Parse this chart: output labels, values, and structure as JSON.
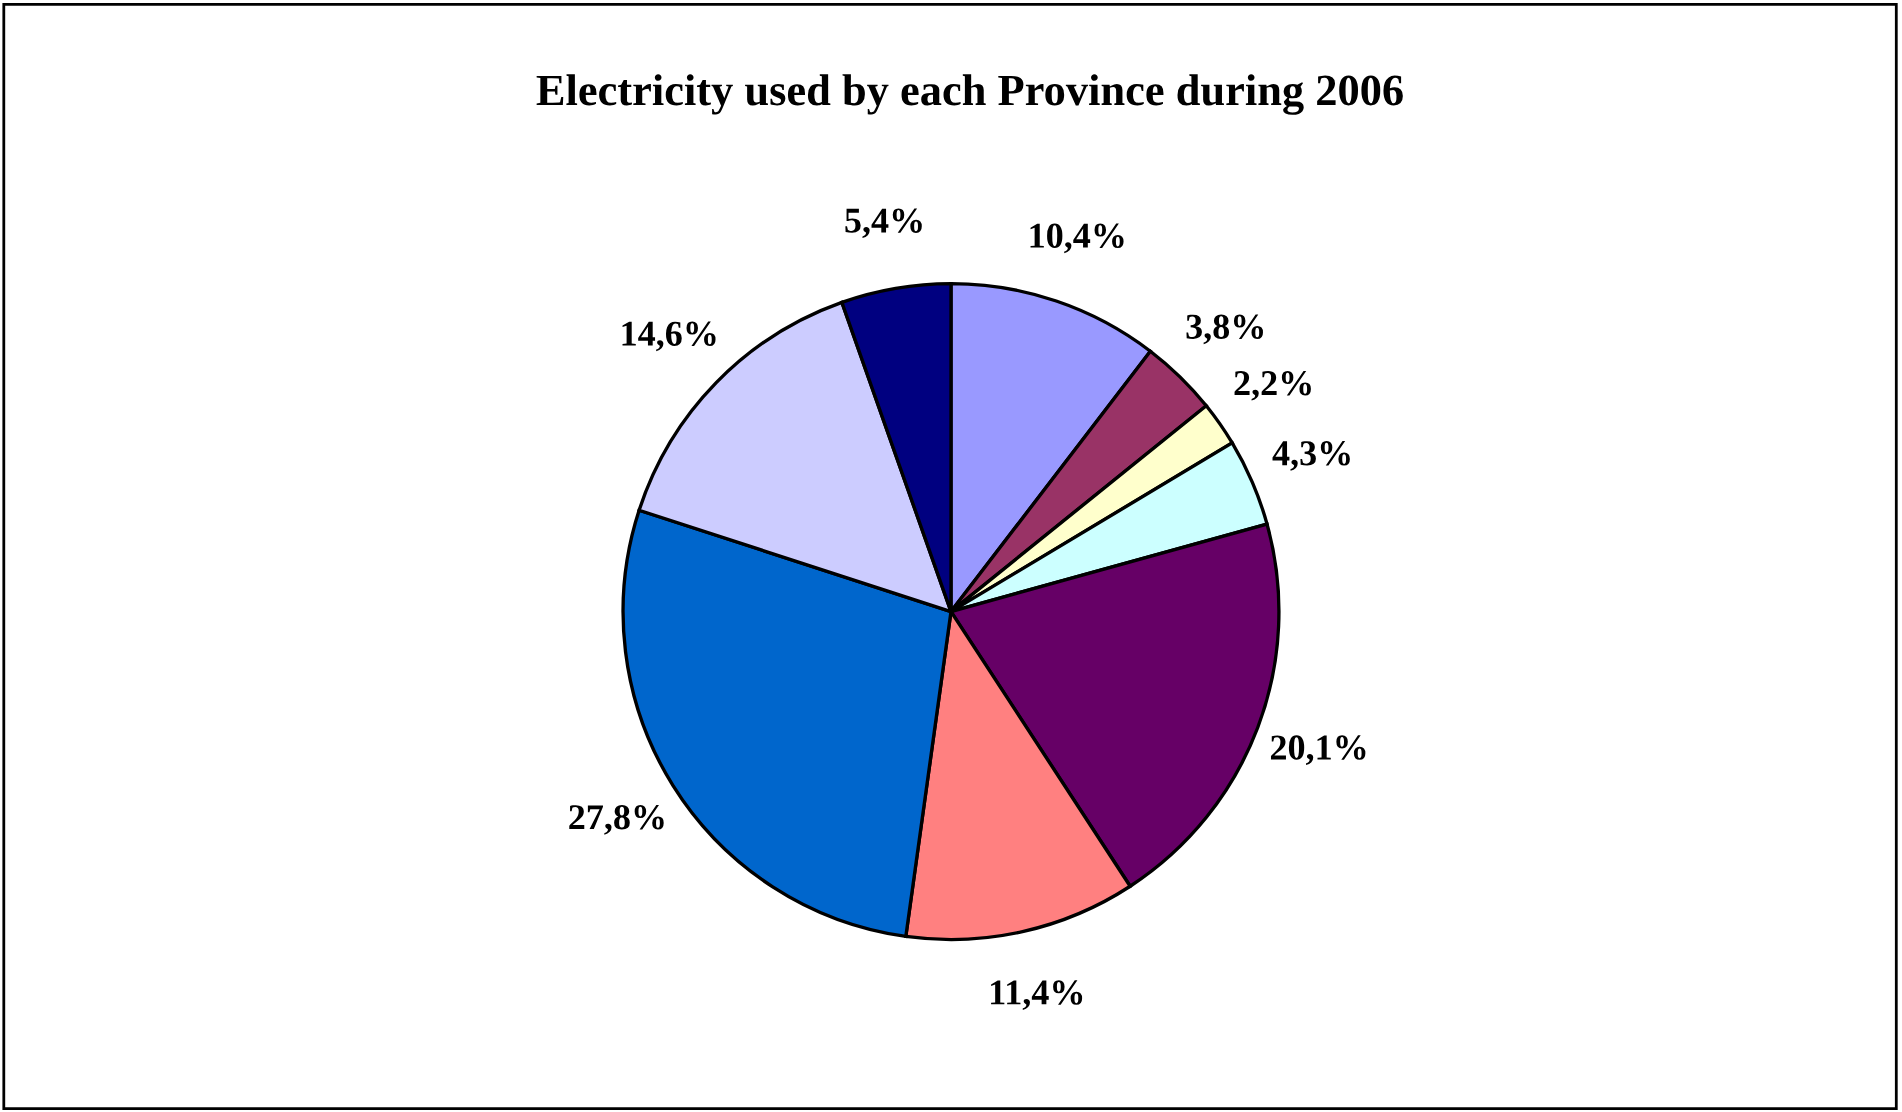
{
  "chart_data": {
    "type": "pie",
    "title": "Electricity used by each Province during 2006",
    "categories": [
      null,
      null,
      null,
      null,
      null,
      null,
      null,
      null,
      null
    ],
    "values": [
      10.4,
      3.8,
      2.2,
      4.3,
      20.1,
      11.4,
      27.8,
      14.6,
      5.4
    ],
    "value_labels": [
      "10,4%",
      "3,8%",
      "2,2%",
      "4,3%",
      "20,1%",
      "11,4%",
      "27,8%",
      "14,6%",
      "5,4%"
    ],
    "colors": [
      "#9999ff",
      "#993366",
      "#ffffcc",
      "#ccffff",
      "#660066",
      "#ff8080",
      "#0066cc",
      "#ccccff",
      "#000080"
    ],
    "legend": false
  }
}
